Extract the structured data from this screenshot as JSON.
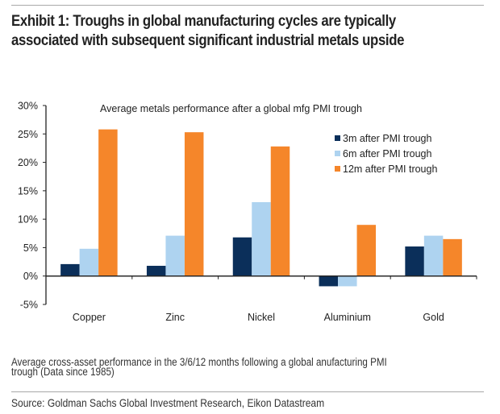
{
  "header": {
    "title_line1": "Exhibit 1: Troughs in global manufacturing cycles are typically",
    "title_line2": "associated with subsequent significant industrial metals upside"
  },
  "footer": {
    "caption_line1": "Average cross-asset performance in the 3/6/12 months following a global anufacturing PMI",
    "caption_line2": "trough (Data since 1985)",
    "source": "Source: Goldman Sachs Global Investment Research, Eikon Datastream"
  },
  "chart_data": {
    "type": "bar",
    "title": "Average metals performance after a global mfg PMI trough",
    "xlabel": "",
    "ylabel": "",
    "categories": [
      "Copper",
      "Zinc",
      "Nickel",
      "Aluminium",
      "Gold"
    ],
    "series": [
      {
        "name": "3m after PMI trough",
        "color": "#0b2f5a",
        "values": [
          2.1,
          1.8,
          6.8,
          -1.8,
          5.2
        ]
      },
      {
        "name": "6m after PMI trough",
        "color": "#aed3f0",
        "values": [
          4.8,
          7.1,
          13.0,
          -1.8,
          7.1
        ]
      },
      {
        "name": "12m after PMI trough",
        "color": "#f5862a",
        "values": [
          25.8,
          25.3,
          22.8,
          9.0,
          6.5
        ]
      }
    ],
    "ylim": [
      -5,
      30
    ],
    "yticks": [
      -5,
      0,
      5,
      10,
      15,
      20,
      25,
      30
    ],
    "ytick_labels": [
      "-5%",
      "0%",
      "5%",
      "10%",
      "15%",
      "20%",
      "25%",
      "30%"
    ],
    "grid": false,
    "legend_position": "top-right"
  }
}
